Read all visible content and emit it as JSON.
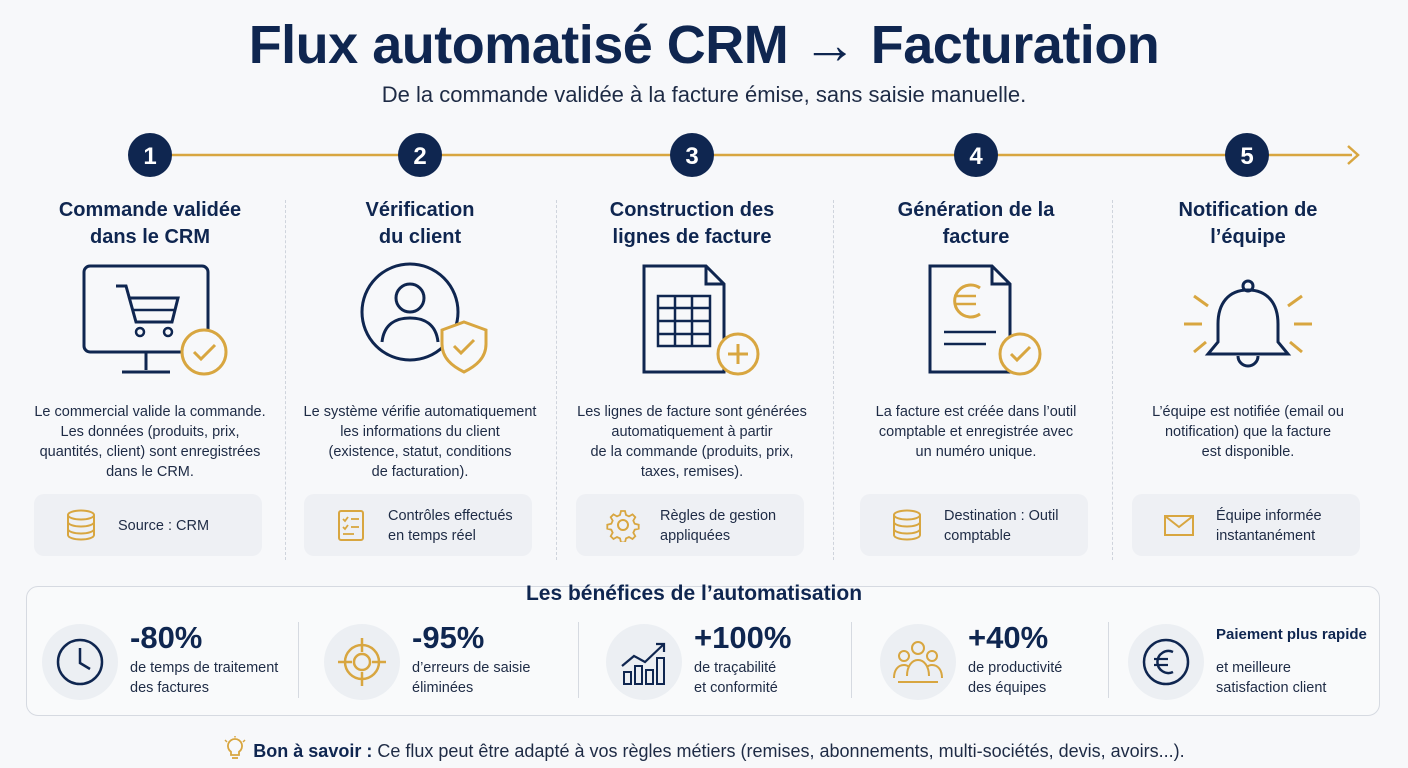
{
  "header": {
    "title": "Flux automatisé CRM → Facturation",
    "subtitle": "De la commande validée à la facture émise, sans saisie manuelle."
  },
  "colors": {
    "navy": "#0f2650",
    "gold": "#d8a640",
    "box": "#eef0f4"
  },
  "steps": [
    {
      "number": "1",
      "title": "Commande validée\ndans le CRM",
      "icon": "monitor-cart-check-icon",
      "description": "Le commercial valide la commande.\nLes données (produits, prix,\nquantités, client) sont enregistrées\ndans le CRM.",
      "box_icon": "database-icon",
      "box_text": "Source : CRM"
    },
    {
      "number": "2",
      "title": "Vérification\ndu client",
      "icon": "user-shield-icon",
      "description": "Le système vérifie automatiquement\nles informations du client\n(existence, statut, conditions\nde facturation).",
      "box_icon": "checklist-icon",
      "box_text": "Contrôles effectués\nen temps réel"
    },
    {
      "number": "3",
      "title": "Construction des\nlignes de facture",
      "icon": "document-table-plus-icon",
      "description": "Les lignes de facture sont générées\nautomatiquement à partir\nde la commande (produits, prix,\ntaxes, remises).",
      "box_icon": "gear-icon",
      "box_text": "Règles de gestion\nappliquées"
    },
    {
      "number": "4",
      "title": "Génération de la\nfacture",
      "icon": "invoice-euro-check-icon",
      "description": "La facture est créée dans l’outil\ncomptable et enregistrée avec\nun numéro unique.",
      "box_icon": "database-icon",
      "box_text": "Destination : Outil\ncomptable"
    },
    {
      "number": "5",
      "title": "Notification de\nl’équipe",
      "icon": "bell-icon",
      "description": "L’équipe est notifiée (email ou\nnotification) que la facture\nest disponible.",
      "box_icon": "envelope-icon",
      "box_text": "Équipe informée\ninstantanément"
    }
  ],
  "benefits": {
    "title": "Les bénéfices de l’automatisation",
    "items": [
      {
        "icon": "clock-icon",
        "value": "-80%",
        "label": "de temps de traitement\ndes factures"
      },
      {
        "icon": "target-icon",
        "value": "-95%",
        "label": "d’erreurs de saisie\néliminées"
      },
      {
        "icon": "growth-chart-icon",
        "value": "+100%",
        "label": "de traçabilité\net conformité"
      },
      {
        "icon": "team-icon",
        "value": "+40%",
        "label": "de productivité\ndes équipes"
      },
      {
        "icon": "euro-coin-icon",
        "value": "Paiement plus rapide",
        "label": "et meilleure\nsatisfaction client"
      }
    ]
  },
  "note": {
    "label": "Bon à savoir :",
    "text": " Ce flux peut être adapté à vos règles métiers (remises, abonnements, multi-sociétés, devis, avoirs...)."
  }
}
